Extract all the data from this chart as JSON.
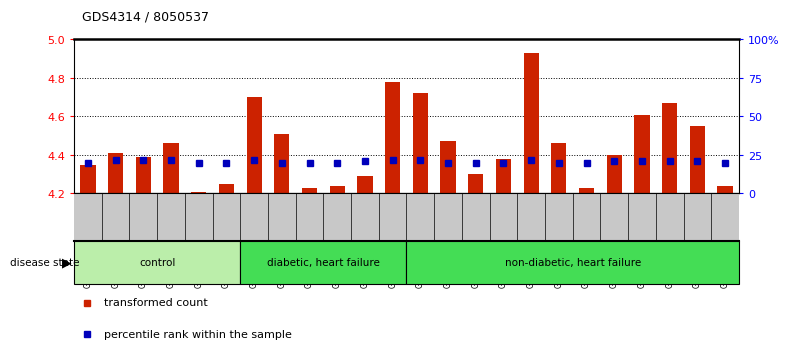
{
  "title": "GDS4314 / 8050537",
  "samples": [
    "GSM662158",
    "GSM662159",
    "GSM662160",
    "GSM662161",
    "GSM662162",
    "GSM662163",
    "GSM662164",
    "GSM662165",
    "GSM662166",
    "GSM662167",
    "GSM662168",
    "GSM662169",
    "GSM662170",
    "GSM662171",
    "GSM662172",
    "GSM662173",
    "GSM662174",
    "GSM662175",
    "GSM662176",
    "GSM662177",
    "GSM662178",
    "GSM662179",
    "GSM662180",
    "GSM662181"
  ],
  "transformed_count": [
    4.35,
    4.41,
    4.39,
    4.46,
    4.21,
    4.25,
    4.7,
    4.51,
    4.23,
    4.24,
    4.29,
    4.78,
    4.72,
    4.47,
    4.3,
    4.38,
    4.93,
    4.46,
    4.23,
    4.4,
    4.61,
    4.67,
    4.55,
    4.24
  ],
  "percentile_rank": [
    20,
    22,
    22,
    22,
    20,
    20,
    22,
    20,
    20,
    20,
    21,
    22,
    22,
    20,
    20,
    20,
    22,
    20,
    20,
    21,
    21,
    21,
    21,
    20
  ],
  "ylim_left": [
    4.2,
    5.0
  ],
  "ylim_right": [
    0,
    100
  ],
  "yticks_left": [
    4.2,
    4.4,
    4.6,
    4.8,
    5.0
  ],
  "yticks_right": [
    0,
    25,
    50,
    75,
    100
  ],
  "bar_color": "#CC2200",
  "dot_color": "#0000BB",
  "col_bg_color": "#C8C8C8",
  "group_control_color": "#BBEEAA",
  "group_diabetic_color": "#44DD55",
  "group_nondiabetic_color": "#44DD55",
  "boundaries": [
    {
      "start": 0,
      "end": 5,
      "label": "control",
      "color": "#BBEEAA"
    },
    {
      "start": 6,
      "end": 11,
      "label": "diabetic, heart failure",
      "color": "#44DD55"
    },
    {
      "start": 12,
      "end": 23,
      "label": "non-diabetic, heart failure",
      "color": "#44DD55"
    }
  ],
  "legend_items": [
    {
      "label": "transformed count",
      "color": "#CC2200"
    },
    {
      "label": "percentile rank within the sample",
      "color": "#0000BB"
    }
  ]
}
